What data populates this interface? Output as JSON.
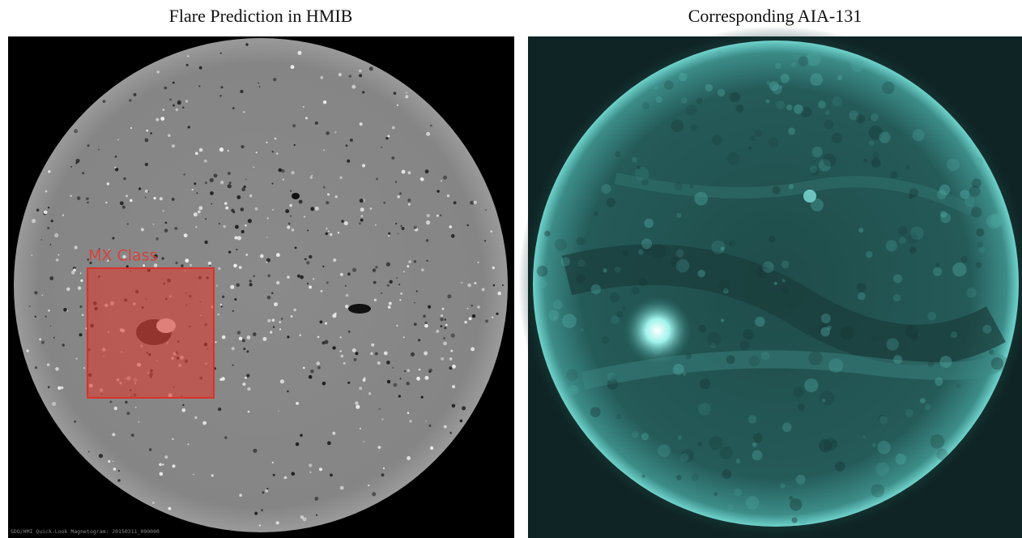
{
  "panels": [
    {
      "title": "Flare Prediction in HMIB",
      "box_label": "MX Class",
      "caption": "SDO/HMI Quick-Look Magnetogram: 20150311_000000"
    },
    {
      "title": "Corresponding AIA-131"
    }
  ]
}
